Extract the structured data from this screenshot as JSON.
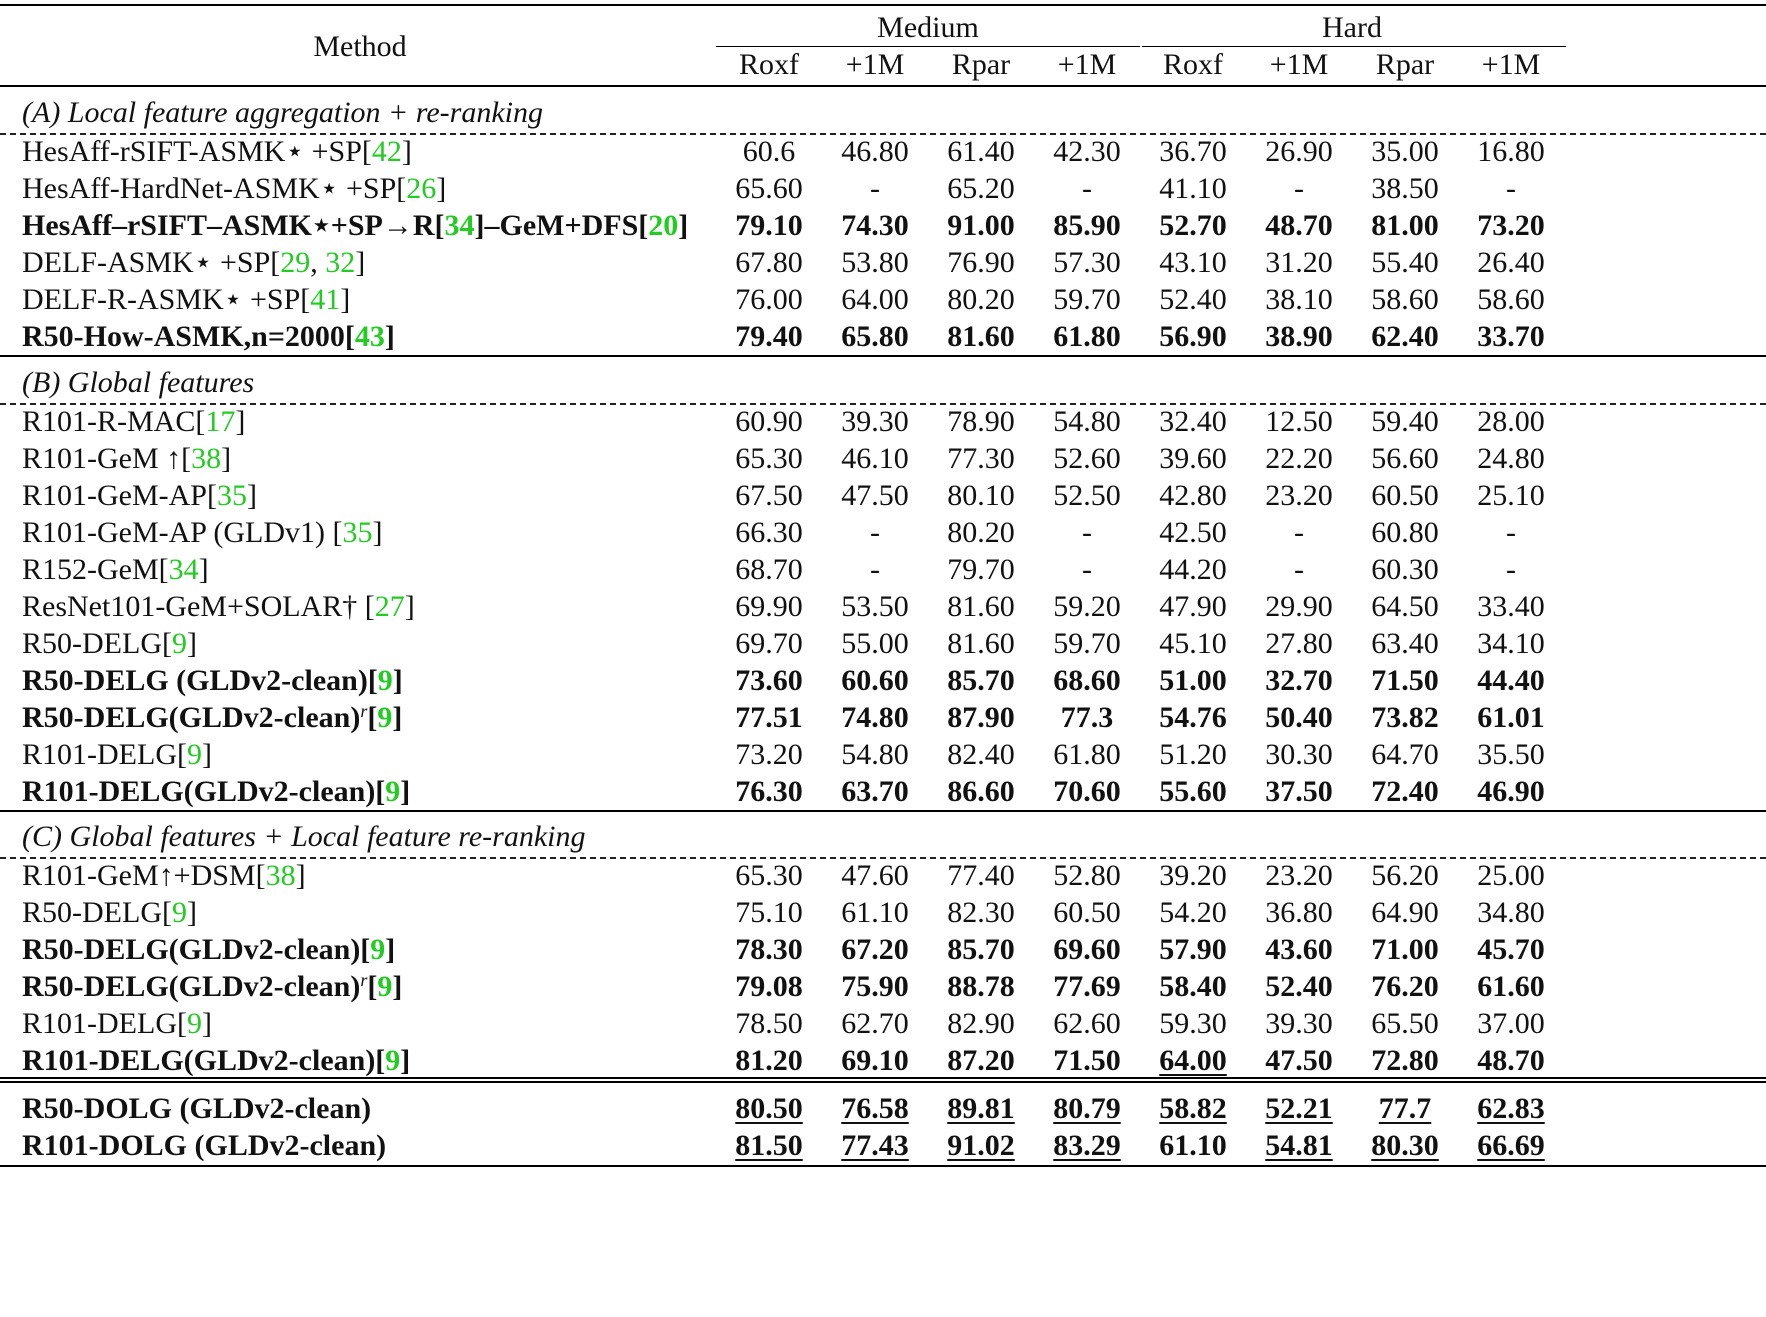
{
  "header": {
    "method": "Method",
    "groups": [
      "Medium",
      "Hard"
    ],
    "columns": [
      "Roxf",
      "+1M",
      "Rpar",
      "+1M",
      "Roxf",
      "+1M",
      "Rpar",
      "+1M"
    ]
  },
  "sections": [
    {
      "title": "(A) Local feature aggregation + re-ranking",
      "rows": [
        {
          "parts": [
            {
              "t": "HesAff-rSIFT-ASMK⋆ +SP["
            },
            {
              "t": "42",
              "ref": true
            },
            {
              "t": "]"
            }
          ],
          "bold": false,
          "values": [
            "60.6",
            "46.80",
            "61.40",
            "42.30",
            "36.70",
            "26.90",
            "35.00",
            "16.80"
          ],
          "underline": []
        },
        {
          "parts": [
            {
              "t": "HesAff-HardNet-ASMK⋆ +SP["
            },
            {
              "t": "26",
              "ref": true
            },
            {
              "t": "]"
            }
          ],
          "bold": false,
          "values": [
            "65.60",
            "-",
            "65.20",
            "-",
            "41.10",
            "-",
            "38.50",
            "-"
          ],
          "underline": []
        },
        {
          "parts": [
            {
              "t": "HesAff–rSIFT–ASMK⋆+SP→R["
            },
            {
              "t": "34",
              "ref": true
            },
            {
              "t": "]–GeM+DFS["
            },
            {
              "t": "20",
              "ref": true
            },
            {
              "t": "]"
            }
          ],
          "bold": true,
          "values": [
            "79.10",
            "74.30",
            "91.00",
            "85.90",
            "52.70",
            "48.70",
            "81.00",
            "73.20"
          ],
          "underline": []
        },
        {
          "parts": [
            {
              "t": "DELF-ASMK⋆ +SP["
            },
            {
              "t": "29",
              "ref": true
            },
            {
              "t": ", "
            },
            {
              "t": "32",
              "ref": true
            },
            {
              "t": "]"
            }
          ],
          "bold": false,
          "values": [
            "67.80",
            "53.80",
            "76.90",
            "57.30",
            "43.10",
            "31.20",
            "55.40",
            "26.40"
          ],
          "underline": []
        },
        {
          "parts": [
            {
              "t": "DELF-R-ASMK⋆ +SP["
            },
            {
              "t": "41",
              "ref": true
            },
            {
              "t": "]"
            }
          ],
          "bold": false,
          "values": [
            "76.00",
            "64.00",
            "80.20",
            "59.70",
            "52.40",
            "38.10",
            "58.60",
            "58.60"
          ],
          "underline": []
        },
        {
          "parts": [
            {
              "t": "R50-How-ASMK,n=2000["
            },
            {
              "t": "43",
              "ref": true
            },
            {
              "t": "]"
            }
          ],
          "bold": true,
          "values": [
            "79.40",
            "65.80",
            "81.60",
            "61.80",
            "56.90",
            "38.90",
            "62.40",
            "33.70"
          ],
          "underline": []
        }
      ]
    },
    {
      "title": "(B) Global features",
      "rows": [
        {
          "parts": [
            {
              "t": "R101-R-MAC["
            },
            {
              "t": "17",
              "ref": true
            },
            {
              "t": "]"
            }
          ],
          "bold": false,
          "values": [
            "60.90",
            "39.30",
            "78.90",
            "54.80",
            "32.40",
            "12.50",
            "59.40",
            "28.00"
          ],
          "underline": []
        },
        {
          "parts": [
            {
              "t": "R101-GeM ↑["
            },
            {
              "t": "38",
              "ref": true
            },
            {
              "t": "]"
            }
          ],
          "bold": false,
          "values": [
            "65.30",
            "46.10",
            "77.30",
            "52.60",
            "39.60",
            "22.20",
            "56.60",
            "24.80"
          ],
          "underline": []
        },
        {
          "parts": [
            {
              "t": "R101-GeM-AP["
            },
            {
              "t": "35",
              "ref": true
            },
            {
              "t": "]"
            }
          ],
          "bold": false,
          "values": [
            "67.50",
            "47.50",
            "80.10",
            "52.50",
            "42.80",
            "23.20",
            "60.50",
            "25.10"
          ],
          "underline": []
        },
        {
          "parts": [
            {
              "t": "R101-GeM-AP (GLDv1) ["
            },
            {
              "t": "35",
              "ref": true
            },
            {
              "t": "]"
            }
          ],
          "bold": false,
          "values": [
            "66.30",
            "-",
            "80.20",
            "-",
            "42.50",
            "-",
            "60.80",
            "-"
          ],
          "underline": []
        },
        {
          "parts": [
            {
              "t": "R152-GeM["
            },
            {
              "t": "34",
              "ref": true
            },
            {
              "t": "]"
            }
          ],
          "bold": false,
          "values": [
            "68.70",
            "-",
            "79.70",
            "-",
            "44.20",
            "-",
            "60.30",
            "-"
          ],
          "underline": []
        },
        {
          "parts": [
            {
              "t": "ResNet101-GeM+SOLAR† ["
            },
            {
              "t": "27",
              "ref": true
            },
            {
              "t": "]"
            }
          ],
          "bold": false,
          "values": [
            "69.90",
            "53.50",
            "81.60",
            "59.20",
            "47.90",
            "29.90",
            "64.50",
            "33.40"
          ],
          "underline": []
        },
        {
          "parts": [
            {
              "t": "R50-DELG["
            },
            {
              "t": "9",
              "ref": true
            },
            {
              "t": "]"
            }
          ],
          "bold": false,
          "values": [
            "69.70",
            "55.00",
            "81.60",
            "59.70",
            "45.10",
            "27.80",
            "63.40",
            "34.10"
          ],
          "underline": []
        },
        {
          "parts": [
            {
              "t": "R50-DELG (GLDv2-clean)["
            },
            {
              "t": "9",
              "ref": true
            },
            {
              "t": "]"
            }
          ],
          "bold": true,
          "values": [
            "73.60",
            "60.60",
            "85.70",
            "68.60",
            "51.00",
            "32.70",
            "71.50",
            "44.40"
          ],
          "underline": []
        },
        {
          "parts": [
            {
              "t": "R50-DELG(GLDv2-clean)"
            },
            {
              "t": "r",
              "sup": true
            },
            {
              "t": "["
            },
            {
              "t": "9",
              "ref": true
            },
            {
              "t": "]"
            }
          ],
          "bold": true,
          "values": [
            "77.51",
            "74.80",
            "87.90",
            "77.3",
            "54.76",
            "50.40",
            "73.82",
            "61.01"
          ],
          "underline": []
        },
        {
          "parts": [
            {
              "t": "R101-DELG["
            },
            {
              "t": "9",
              "ref": true
            },
            {
              "t": "]"
            }
          ],
          "bold": false,
          "values": [
            "73.20",
            "54.80",
            "82.40",
            "61.80",
            "51.20",
            "30.30",
            "64.70",
            "35.50"
          ],
          "underline": []
        },
        {
          "parts": [
            {
              "t": "R101-DELG(GLDv2-clean)["
            },
            {
              "t": "9",
              "ref": true
            },
            {
              "t": "]"
            }
          ],
          "bold": true,
          "values": [
            "76.30",
            "63.70",
            "86.60",
            "70.60",
            "55.60",
            "37.50",
            "72.40",
            "46.90"
          ],
          "underline": []
        }
      ]
    },
    {
      "title": "(C) Global features + Local feature re-ranking",
      "rows": [
        {
          "parts": [
            {
              "t": "R101-GeM↑+DSM["
            },
            {
              "t": "38",
              "ref": true
            },
            {
              "t": "]"
            }
          ],
          "bold": false,
          "values": [
            "65.30",
            "47.60",
            "77.40",
            "52.80",
            "39.20",
            "23.20",
            "56.20",
            "25.00"
          ],
          "underline": []
        },
        {
          "parts": [
            {
              "t": "R50-DELG["
            },
            {
              "t": "9",
              "ref": true
            },
            {
              "t": "]"
            }
          ],
          "bold": false,
          "values": [
            "75.10",
            "61.10",
            "82.30",
            "60.50",
            "54.20",
            "36.80",
            "64.90",
            "34.80"
          ],
          "underline": []
        },
        {
          "parts": [
            {
              "t": "R50-DELG(GLDv2-clean)["
            },
            {
              "t": "9",
              "ref": true
            },
            {
              "t": "]"
            }
          ],
          "bold": true,
          "values": [
            "78.30",
            "67.20",
            "85.70",
            "69.60",
            "57.90",
            "43.60",
            "71.00",
            "45.70"
          ],
          "underline": []
        },
        {
          "parts": [
            {
              "t": "R50-DELG(GLDv2-clean)"
            },
            {
              "t": "r",
              "sup": true
            },
            {
              "t": "["
            },
            {
              "t": "9",
              "ref": true
            },
            {
              "t": "]"
            }
          ],
          "bold": true,
          "values": [
            "79.08",
            "75.90",
            "88.78",
            "77.69",
            "58.40",
            "52.40",
            "76.20",
            "61.60"
          ],
          "underline": []
        },
        {
          "parts": [
            {
              "t": "R101-DELG["
            },
            {
              "t": "9",
              "ref": true
            },
            {
              "t": "]"
            }
          ],
          "bold": false,
          "values": [
            "78.50",
            "62.70",
            "82.90",
            "62.60",
            "59.30",
            "39.30",
            "65.50",
            "37.00"
          ],
          "underline": []
        },
        {
          "parts": [
            {
              "t": "R101-DELG(GLDv2-clean)["
            },
            {
              "t": "9",
              "ref": true
            },
            {
              "t": "]"
            }
          ],
          "bold": true,
          "values": [
            "81.20",
            "69.10",
            "87.20",
            "71.50",
            "64.00",
            "47.50",
            "72.80",
            "48.70"
          ],
          "underline": [
            4
          ]
        }
      ]
    },
    {
      "title": "",
      "rows": [
        {
          "parts": [
            {
              "t": "R50-DOLG (GLDv2-clean)"
            }
          ],
          "bold": true,
          "values": [
            "80.50",
            "76.58",
            "89.81",
            "80.79",
            "58.82",
            "52.21",
            "77.7",
            "62.83"
          ],
          "underline": [
            0,
            1,
            2,
            3,
            4,
            5,
            6,
            7
          ]
        },
        {
          "parts": [
            {
              "t": "R101-DOLG (GLDv2-clean)"
            }
          ],
          "bold": true,
          "values": [
            "81.50",
            "77.43",
            "91.02",
            "83.29",
            "61.10",
            "54.81",
            "80.30",
            "66.69"
          ],
          "underline": [
            0,
            1,
            2,
            3,
            5,
            6,
            7
          ]
        }
      ]
    }
  ],
  "colors": {
    "ref": "#22cc22",
    "text": "#111111"
  }
}
